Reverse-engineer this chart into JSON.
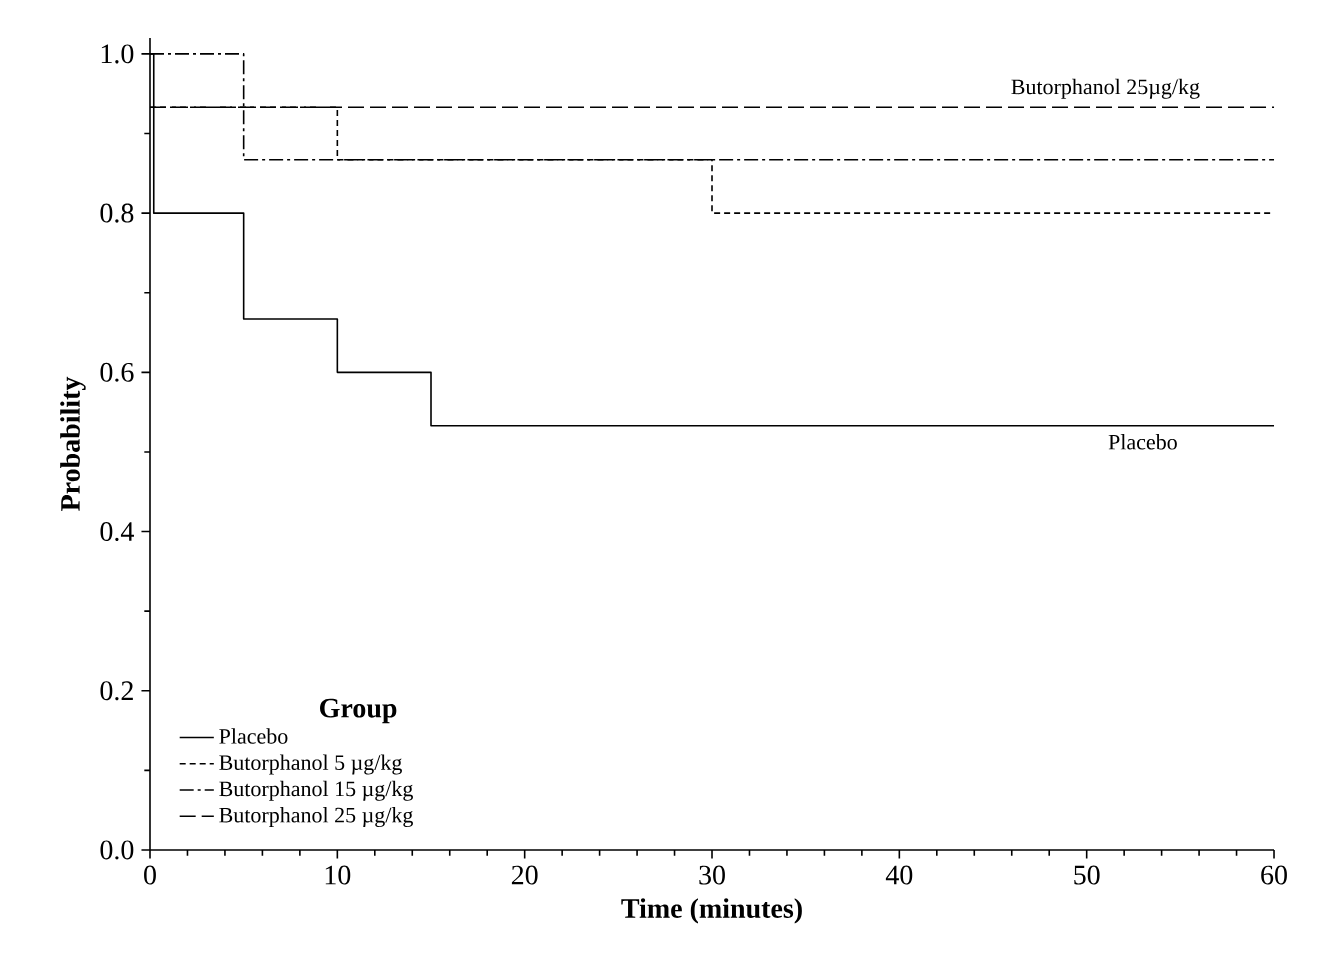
{
  "chart_data": {
    "type": "step",
    "xlabel": "Time (minutes)",
    "ylabel": "Probability",
    "legend_title": "Group",
    "legend": "bottom left",
    "xlim": [
      0,
      60
    ],
    "xticks": [
      0,
      10,
      20,
      30,
      40,
      50,
      60
    ],
    "ylim": [
      0,
      1.02
    ],
    "yticks": [
      {
        "value": 0,
        "label": "0.0"
      },
      {
        "value": 0.2,
        "label": "0.2"
      },
      {
        "value": 0.4,
        "label": "0.4"
      },
      {
        "value": 0.6,
        "label": "0.6"
      },
      {
        "value": 0.8,
        "label": "0.8"
      },
      {
        "value": 1,
        "label": "1.0"
      }
    ],
    "series": [
      {
        "name": "Placebo",
        "color": "#000000",
        "line_style": "solid",
        "x": [
          0,
          0.2,
          5,
          10,
          15,
          60
        ],
        "values": [
          1.0,
          0.8,
          0.667,
          0.6,
          0.533,
          0.533
        ]
      },
      {
        "name": "Butorphanol   5 µg/kg",
        "color": "#000000",
        "line_style": "dashed",
        "x": [
          0,
          10,
          30,
          60
        ],
        "values": [
          0.933,
          0.867,
          0.8,
          0.8
        ]
      },
      {
        "name": "Butorphanol 15 µg/kg",
        "color": "#000000",
        "line_style": "dashdot",
        "x": [
          0,
          5,
          60
        ],
        "values": [
          1.0,
          0.867,
          0.867
        ]
      },
      {
        "name": "Butorphanol 25 µg/kg",
        "color": "#000000",
        "line_style": "longdash",
        "x": [
          0,
          60
        ],
        "values": [
          0.933,
          0.933
        ]
      }
    ],
    "annotations": [
      {
        "text": "Butorphanol 25µg/kg",
        "x": 51,
        "y": 0.933
      },
      {
        "text": "Placebo",
        "x": 53,
        "y": 0.533
      }
    ]
  }
}
